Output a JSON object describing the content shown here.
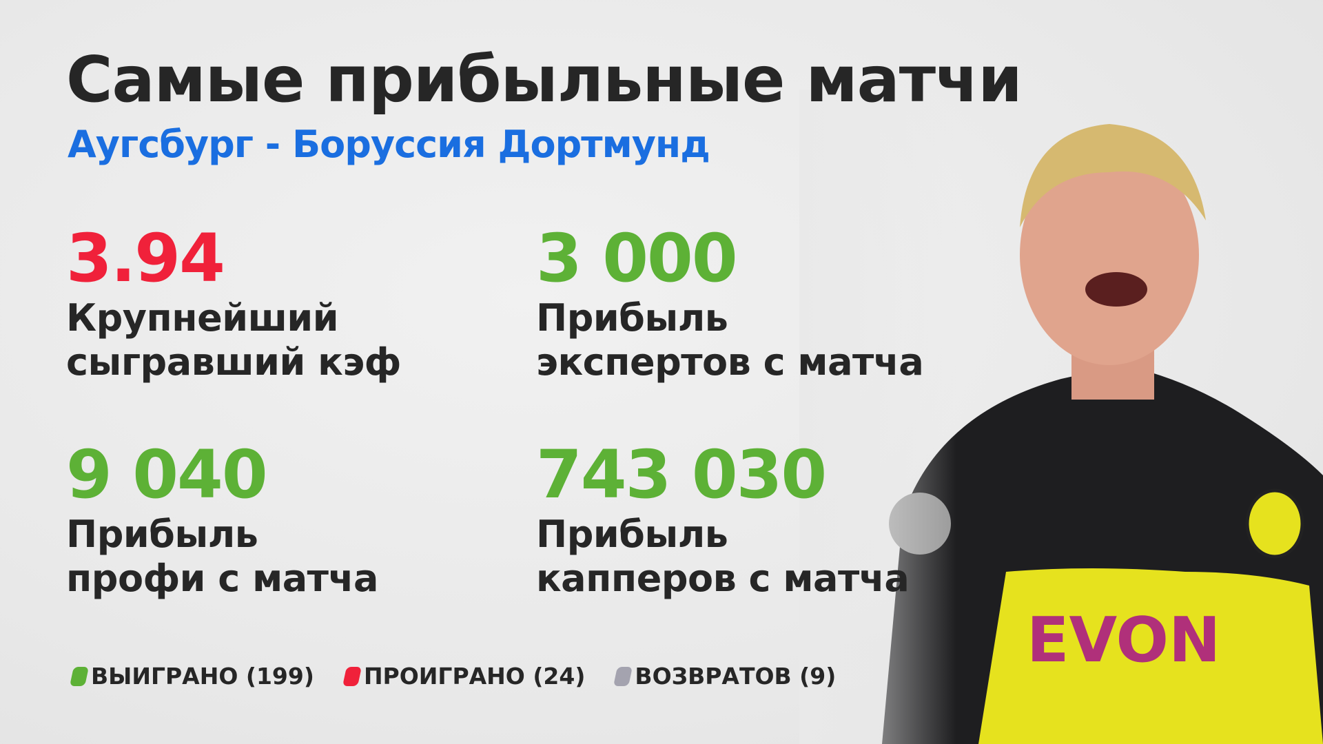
{
  "header": {
    "title": "Самые прибыльные матчи",
    "subtitle": "Аугсбург - Боруссия Дортмунд"
  },
  "stats": [
    {
      "value": "3.94",
      "label": "Крупнейший\nсыгравший кэф",
      "color": "#f0213a"
    },
    {
      "value": "3 000",
      "label": "Прибыль\nэкспертов с матча",
      "color": "#5db136"
    },
    {
      "value": "9 040",
      "label": "Прибыль\nпрофи с матча",
      "color": "#5db136"
    },
    {
      "value": "743 030",
      "label": "Прибыль\nкапперов с матча",
      "color": "#5db136"
    }
  ],
  "legend": [
    {
      "label": "ВЫИГРАНО (199)",
      "color": "#5db136"
    },
    {
      "label": "ПРОИГРАНО (24)",
      "color": "#f0213a"
    },
    {
      "label": "ВОЗВРАТОВ (9)",
      "color": "#a4a3af"
    }
  ],
  "colors": {
    "accent": "#1a6ee0"
  }
}
